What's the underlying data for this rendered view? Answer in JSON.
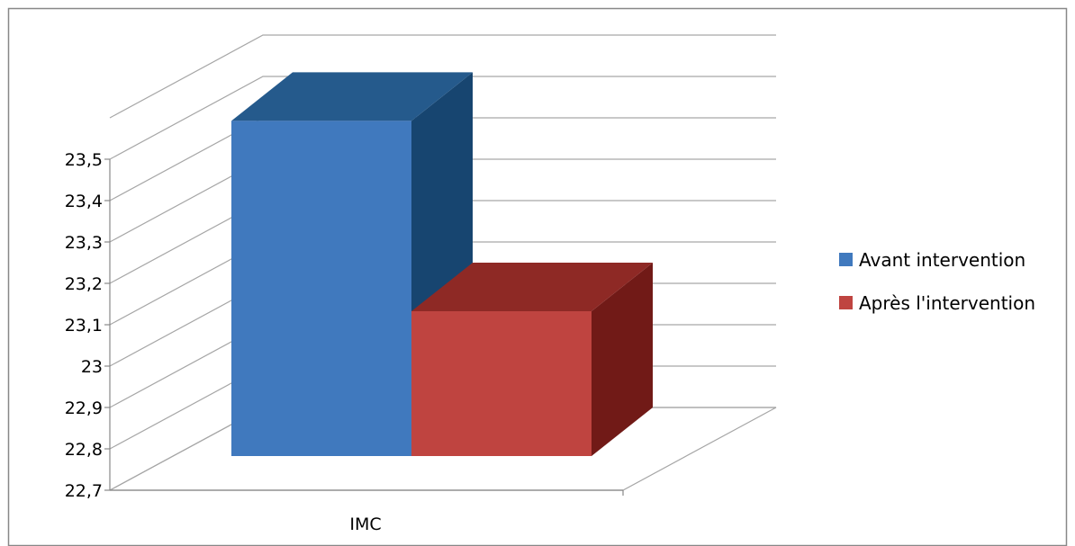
{
  "chart_data": {
    "type": "bar",
    "style": "3d-clustered",
    "categories": [
      "IMC"
    ],
    "series": [
      {
        "name": "Avant intervention",
        "values": [
          23.51
        ],
        "color": "#4079BE",
        "top_color": "#255A8C",
        "side_color": "#174570"
      },
      {
        "name": "Après l'intervention",
        "values": [
          23.05
        ],
        "color": "#BF4440",
        "top_color": "#8E2925",
        "side_color": "#711A17"
      }
    ],
    "y_ticks": [
      "22,7",
      "22,8",
      "22,9",
      "23",
      "23,1",
      "23,2",
      "23,3",
      "23,4",
      "23,5"
    ],
    "ylim": [
      22.7,
      23.5
    ],
    "grid": true,
    "legend_position": "right"
  }
}
